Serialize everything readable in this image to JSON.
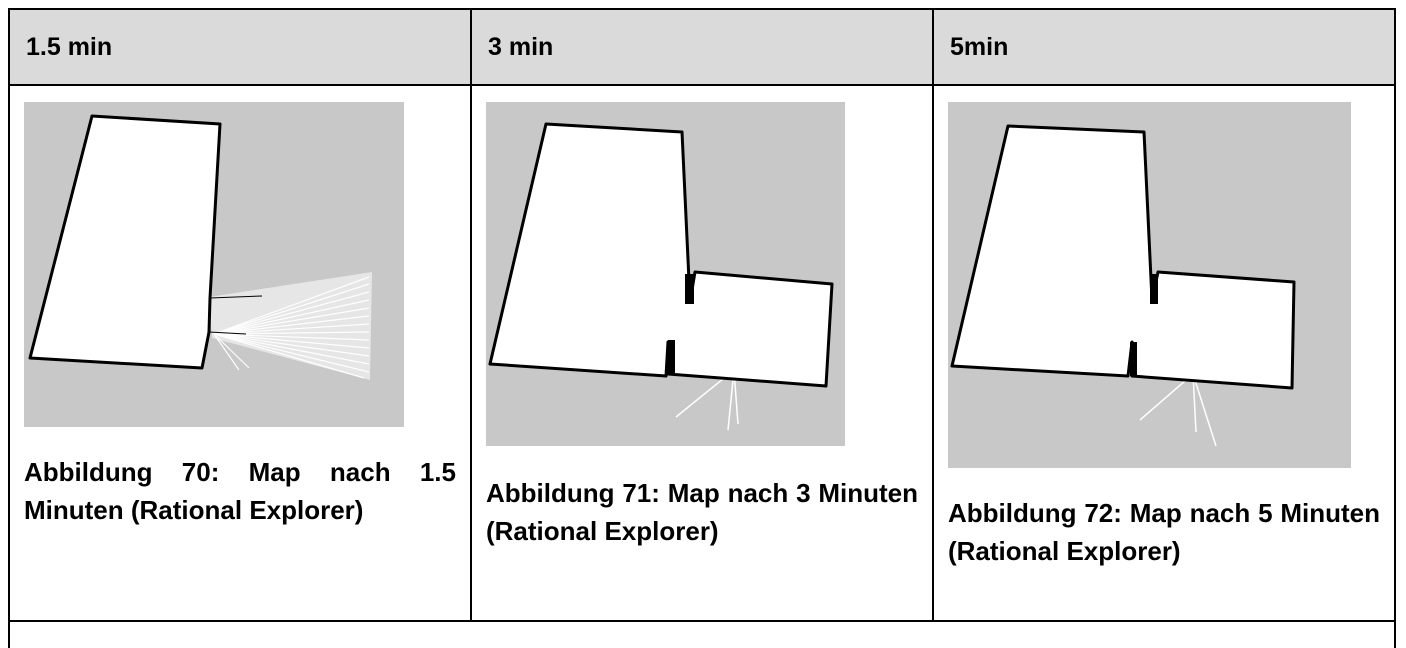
{
  "columns": [
    {
      "header": "1.5 min",
      "caption": "Abbildung 70: Map nach 1.5 Minuten (Rational Explorer)"
    },
    {
      "header": "3 min",
      "caption": "Abbildung 71: Map nach 3 Minuten (Rational Explorer)"
    },
    {
      "header": "5min",
      "caption": "Abbildung 72: Map nach 5 Minuten (Rational Explorer)"
    }
  ],
  "colors": {
    "header_bg": "#dadada",
    "unknown_area": "#c8c8c8",
    "free_space": "#ffffff",
    "walls": "#000000"
  }
}
